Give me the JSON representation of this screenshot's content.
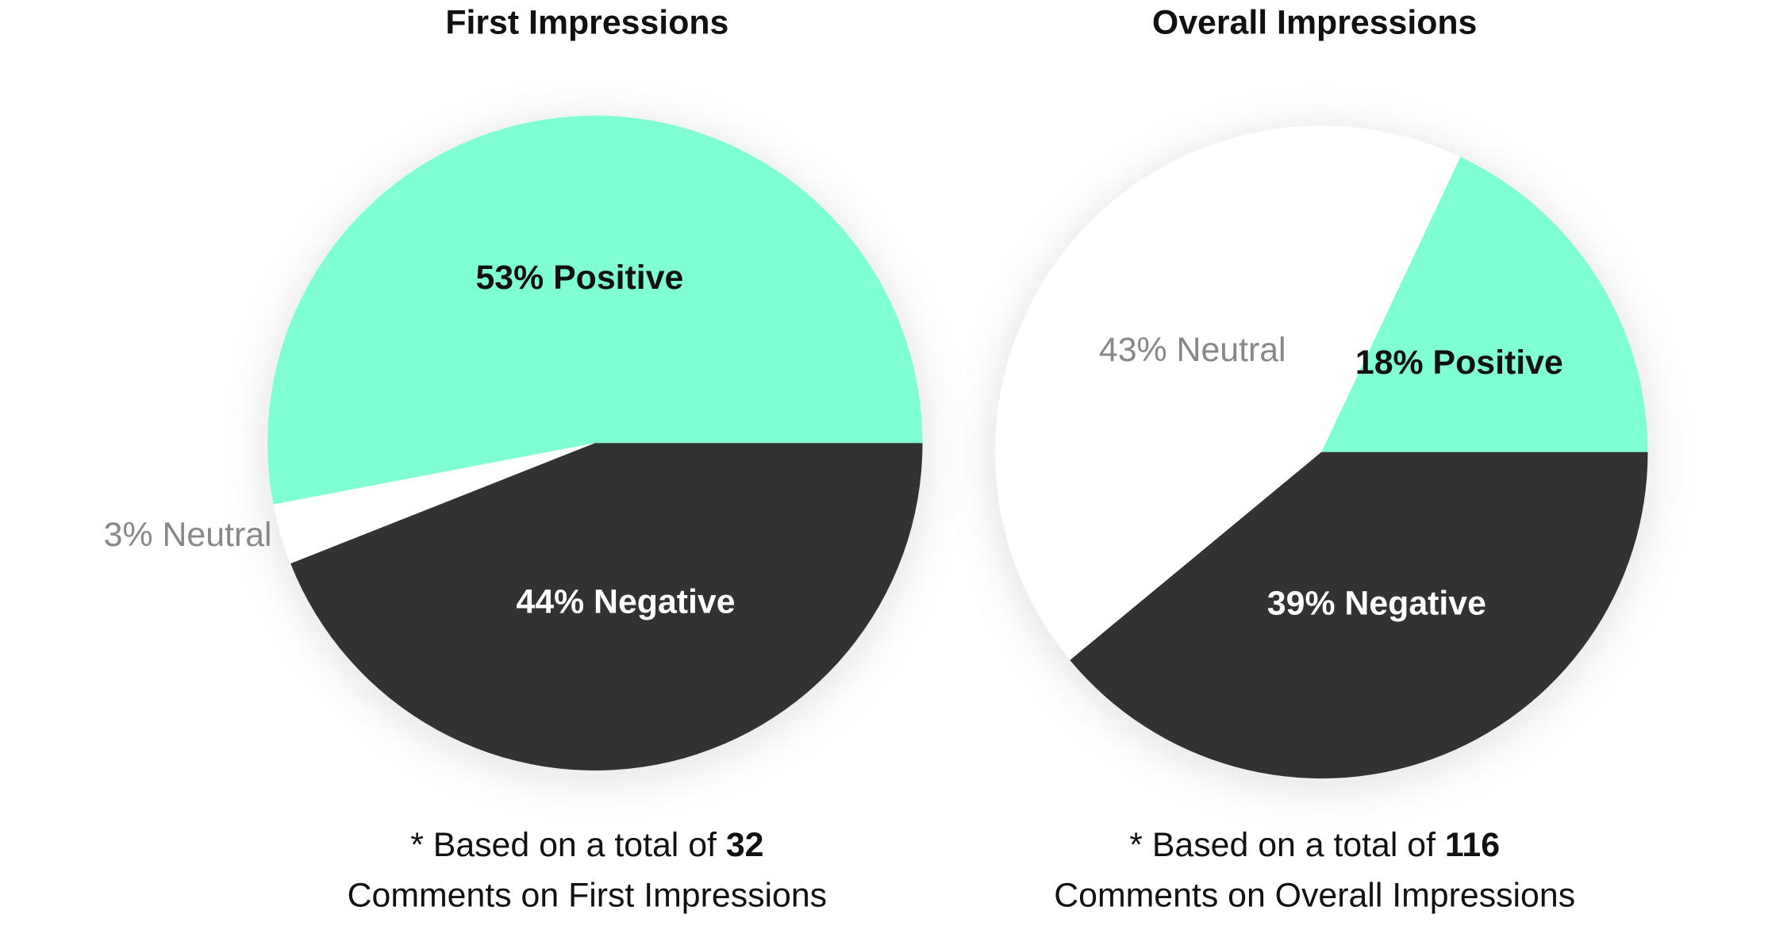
{
  "chart_data": [
    {
      "type": "pie",
      "title": "First Impressions",
      "categories": [
        "Positive",
        "Neutral",
        "Negative"
      ],
      "values": [
        53,
        3,
        44
      ],
      "value_labels": [
        "53% Positive",
        "3% Neutral",
        "44% Negative"
      ],
      "colors": [
        "#80ffd4",
        "#ffffff",
        "#333333"
      ],
      "note_prefix": "* Based on a total of",
      "total": 32,
      "note_suffix": "Comments on First Impressions"
    },
    {
      "type": "pie",
      "title": "Overall Impressions",
      "categories": [
        "Positive",
        "Neutral",
        "Negative"
      ],
      "values": [
        18,
        43,
        39
      ],
      "value_labels": [
        "18% Positive",
        "43% Neutral",
        "39% Negative"
      ],
      "colors": [
        "#80ffd4",
        "#ffffff",
        "#333333"
      ],
      "note_prefix": "* Based on a total of",
      "total": 116,
      "note_suffix": "Comments on Overall Impressions"
    }
  ]
}
